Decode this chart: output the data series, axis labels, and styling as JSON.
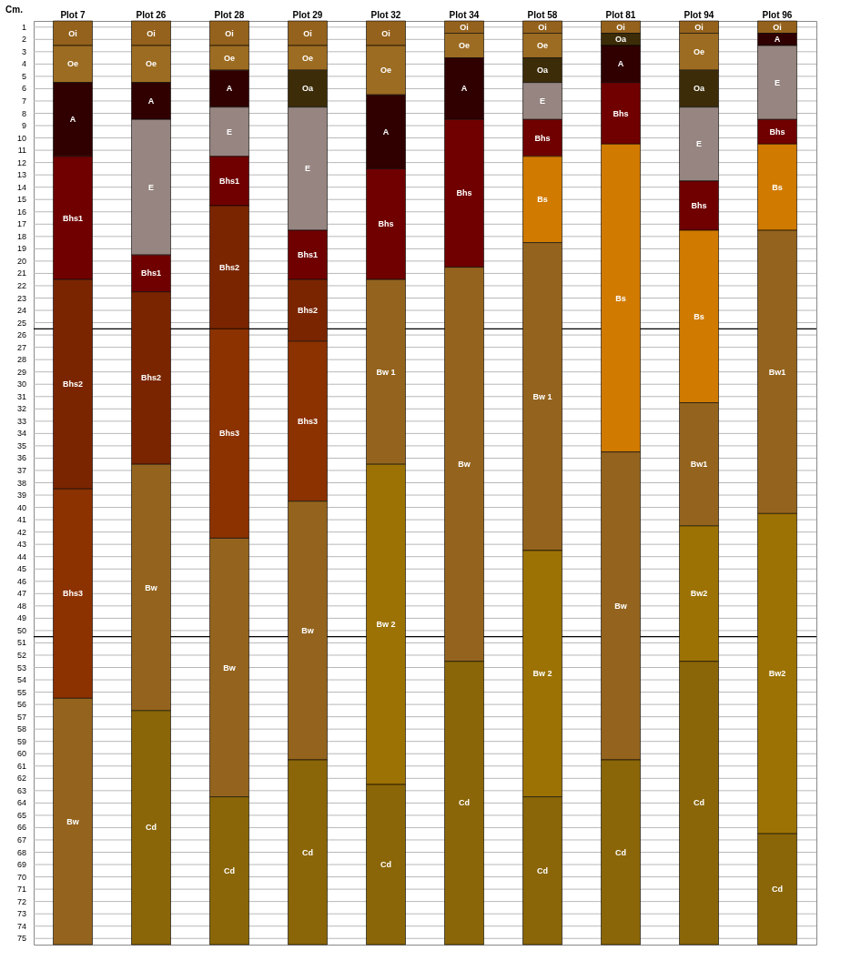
{
  "chart_data": {
    "type": "bar",
    "stacked": true,
    "ylabel": "Cm.",
    "categories": [
      "Plot 7",
      "Plot 26",
      "Plot 28",
      "Plot 29",
      "Plot 32",
      "Plot 34",
      "Plot 58",
      "Plot 81",
      "Plot 94",
      "Plot 96"
    ],
    "series": [
      {
        "color": "#94621c",
        "values": [
          2,
          2,
          2,
          2,
          2,
          1,
          1,
          1,
          1,
          1
        ],
        "value_labels": [
          "Oi",
          "Oi",
          "Oi",
          "Oi",
          "Oi",
          "Oi",
          "Oi",
          "Oi",
          "Oi",
          "Oi"
        ]
      },
      {
        "color": "#9c6c22",
        "values": [
          3,
          3,
          2,
          2,
          4,
          2,
          2,
          null,
          3,
          null
        ],
        "value_labels": [
          "Oe",
          "Oe",
          "Oe",
          "Oe",
          "Oe",
          "Oe",
          "Oe",
          null,
          "Oe",
          null
        ]
      },
      {
        "color": "#3c2c08",
        "values": [
          null,
          null,
          null,
          3,
          null,
          null,
          2,
          1,
          3,
          null
        ],
        "value_labels": [
          null,
          null,
          null,
          "Oa",
          null,
          null,
          "Oa",
          "Oa",
          "Oa",
          null
        ]
      },
      {
        "color": "#300000",
        "values": [
          6,
          3,
          3,
          null,
          6,
          5,
          null,
          3,
          null,
          1
        ],
        "value_labels": [
          "A",
          "A",
          "A",
          null,
          "A",
          "A",
          null,
          "A",
          null,
          "A"
        ]
      },
      {
        "color": "#968580",
        "values": [
          null,
          11,
          4,
          10,
          null,
          null,
          3,
          null,
          6,
          6
        ],
        "value_labels": [
          null,
          "E",
          "E",
          "E",
          null,
          null,
          "E",
          null,
          "E",
          "E"
        ]
      },
      {
        "color": "#700000",
        "values": [
          10,
          3,
          4,
          4,
          9,
          12,
          3,
          5,
          4,
          2
        ],
        "value_labels": [
          "Bhs1",
          "Bhs1",
          "Bhs1",
          "Bhs1",
          "Bhs",
          "Bhs",
          "Bhs",
          "Bhs",
          "Bhs",
          "Bhs"
        ]
      },
      {
        "color": "#7a2500",
        "values": [
          17,
          14,
          10,
          5,
          null,
          null,
          null,
          null,
          null,
          null
        ],
        "value_labels": [
          "Bhs2",
          "Bhs2",
          "Bhs2",
          "Bhs2",
          null,
          null,
          null,
          null,
          null,
          null
        ]
      },
      {
        "color": "#8c3100",
        "values": [
          17,
          null,
          17,
          13,
          null,
          null,
          null,
          null,
          null,
          null
        ],
        "value_labels": [
          "Bhs3",
          null,
          "Bhs3",
          "Bhs3",
          null,
          null,
          null,
          null,
          null,
          null
        ]
      },
      {
        "color": "#d07a00",
        "values": [
          null,
          null,
          null,
          null,
          null,
          null,
          7,
          25,
          14,
          7
        ],
        "value_labels": [
          null,
          null,
          null,
          null,
          null,
          null,
          "Bs",
          "Bs",
          "Bs",
          "Bs"
        ]
      },
      {
        "color": "#94641e",
        "values": [
          20,
          20,
          21,
          21,
          15,
          32,
          25,
          25,
          10,
          23
        ],
        "value_labels": [
          "Bw",
          "Bw",
          "Bw",
          "Bw",
          "Bw 1",
          "Bw",
          "Bw 1",
          "Bw",
          "Bw1",
          "Bw1"
        ]
      },
      {
        "color": "#9c7204",
        "values": [
          null,
          null,
          null,
          null,
          26,
          null,
          20,
          null,
          11,
          26
        ],
        "value_labels": [
          null,
          null,
          null,
          null,
          "Bw 2",
          null,
          "Bw 2",
          null,
          "Bw2",
          "Bw2"
        ]
      },
      {
        "color": "#8a6608",
        "values": [
          null,
          19,
          12,
          15,
          13,
          23,
          12,
          15,
          23,
          9
        ],
        "value_labels": [
          null,
          "Cd",
          "Cd",
          "Cd",
          "Cd",
          "Cd",
          "Cd",
          "Cd",
          "Cd",
          "Cd"
        ]
      }
    ],
    "ylim": [
      75,
      0
    ],
    "yticks": [
      {
        "value": 0.5,
        "label": "1"
      },
      {
        "value": 1.5,
        "label": "2"
      },
      {
        "value": 2.5,
        "label": "3"
      },
      {
        "value": 3.5,
        "label": "4"
      },
      {
        "value": 4.5,
        "label": "5"
      },
      {
        "value": 5.5,
        "label": "6"
      },
      {
        "value": 6.5,
        "label": "7"
      },
      {
        "value": 7.5,
        "label": "8"
      },
      {
        "value": 8.5,
        "label": "9"
      },
      {
        "value": 9.5,
        "label": "10"
      },
      {
        "value": 10.5,
        "label": "11"
      },
      {
        "value": 11.5,
        "label": "12"
      },
      {
        "value": 12.5,
        "label": "13"
      },
      {
        "value": 13.5,
        "label": "14"
      },
      {
        "value": 14.5,
        "label": "15"
      },
      {
        "value": 15.5,
        "label": "16"
      },
      {
        "value": 16.5,
        "label": "17"
      },
      {
        "value": 17.5,
        "label": "18"
      },
      {
        "value": 18.5,
        "label": "19"
      },
      {
        "value": 19.5,
        "label": "20"
      },
      {
        "value": 20.5,
        "label": "21"
      },
      {
        "value": 21.5,
        "label": "22"
      },
      {
        "value": 22.5,
        "label": "23"
      },
      {
        "value": 23.5,
        "label": "24"
      },
      {
        "value": 24.5,
        "label": "25"
      },
      {
        "value": 25.5,
        "label": "26"
      },
      {
        "value": 26.5,
        "label": "27"
      },
      {
        "value": 27.5,
        "label": "28"
      },
      {
        "value": 28.5,
        "label": "29"
      },
      {
        "value": 29.5,
        "label": "30"
      },
      {
        "value": 30.5,
        "label": "31"
      },
      {
        "value": 31.5,
        "label": "32"
      },
      {
        "value": 32.5,
        "label": "33"
      },
      {
        "value": 33.5,
        "label": "34"
      },
      {
        "value": 34.5,
        "label": "35"
      },
      {
        "value": 35.5,
        "label": "36"
      },
      {
        "value": 36.5,
        "label": "37"
      },
      {
        "value": 37.5,
        "label": "38"
      },
      {
        "value": 38.5,
        "label": "39"
      },
      {
        "value": 39.5,
        "label": "40"
      },
      {
        "value": 40.5,
        "label": "41"
      },
      {
        "value": 41.5,
        "label": "42"
      },
      {
        "value": 42.5,
        "label": "43"
      },
      {
        "value": 43.5,
        "label": "44"
      },
      {
        "value": 44.5,
        "label": "45"
      },
      {
        "value": 45.5,
        "label": "46"
      },
      {
        "value": 46.5,
        "label": "47"
      },
      {
        "value": 47.5,
        "label": "48"
      },
      {
        "value": 48.5,
        "label": "49"
      },
      {
        "value": 49.5,
        "label": "50"
      },
      {
        "value": 50.5,
        "label": "51"
      },
      {
        "value": 51.5,
        "label": "52"
      },
      {
        "value": 52.5,
        "label": "53"
      },
      {
        "value": 53.5,
        "label": "54"
      },
      {
        "value": 54.5,
        "label": "55"
      },
      {
        "value": 55.5,
        "label": "56"
      },
      {
        "value": 56.5,
        "label": "57"
      },
      {
        "value": 57.5,
        "label": "58"
      },
      {
        "value": 58.5,
        "label": "59"
      },
      {
        "value": 59.5,
        "label": "60"
      },
      {
        "value": 60.5,
        "label": "61"
      },
      {
        "value": 61.5,
        "label": "62"
      },
      {
        "value": 62.5,
        "label": "63"
      },
      {
        "value": 63.5,
        "label": "64"
      },
      {
        "value": 64.5,
        "label": "65"
      },
      {
        "value": 65.5,
        "label": "66"
      },
      {
        "value": 66.5,
        "label": "67"
      },
      {
        "value": 67.5,
        "label": "68"
      },
      {
        "value": 68.5,
        "label": "69"
      },
      {
        "value": 69.5,
        "label": "70"
      },
      {
        "value": 70.5,
        "label": "71"
      },
      {
        "value": 71.5,
        "label": "72"
      },
      {
        "value": 72.5,
        "label": "73"
      },
      {
        "value": 73.5,
        "label": "74"
      },
      {
        "value": 74.5,
        "label": "75"
      }
    ],
    "ref_lines": [
      {
        "axis": "y",
        "value": 25,
        "color": "#000000"
      },
      {
        "axis": "y",
        "value": 50,
        "color": "#000000"
      }
    ],
    "grid": "y",
    "legend": false
  }
}
